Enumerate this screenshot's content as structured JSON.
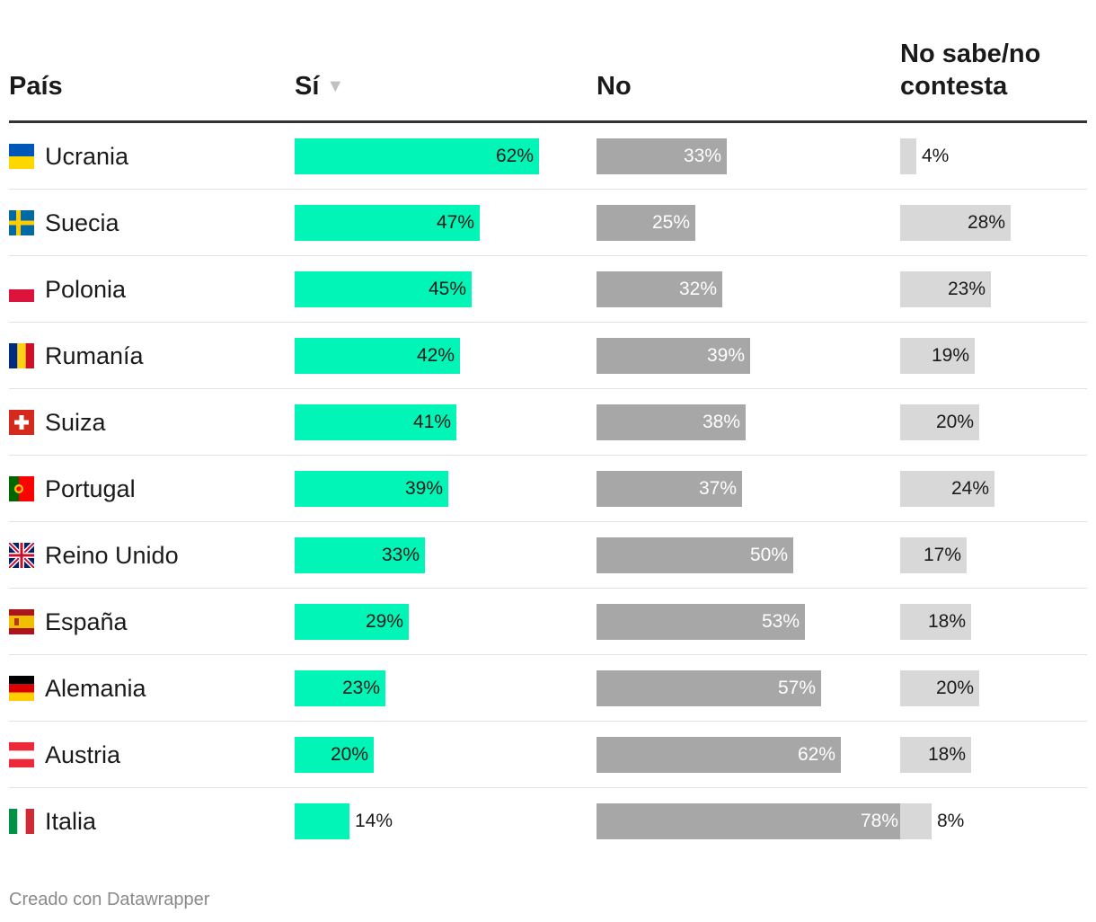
{
  "header": {
    "country": "País",
    "yes": "Sí",
    "sort_indicator": "▼",
    "no": "No",
    "dk_line1": "No sabe/no",
    "dk_line2": "contesta"
  },
  "footer": {
    "credit": "Creado con Datawrapper"
  },
  "colors": {
    "yes": "#00f5b6",
    "no": "#a7a7a7",
    "dk": "#d8d8d8"
  },
  "chart_data": {
    "type": "table",
    "columns": [
      "País",
      "Sí",
      "No",
      "No sabe/no contesta"
    ],
    "sorted_by": "Sí",
    "rows": [
      {
        "country": "Ucrania",
        "flag": "ukraine-flag-icon",
        "yes": 62,
        "no": 33,
        "dk": 4
      },
      {
        "country": "Suecia",
        "flag": "sweden-flag-icon",
        "yes": 47,
        "no": 25,
        "dk": 28
      },
      {
        "country": "Polonia",
        "flag": "poland-flag-icon",
        "yes": 45,
        "no": 32,
        "dk": 23
      },
      {
        "country": "Rumanía",
        "flag": "romania-flag-icon",
        "yes": 42,
        "no": 39,
        "dk": 19
      },
      {
        "country": "Suiza",
        "flag": "switzerland-flag-icon",
        "yes": 41,
        "no": 38,
        "dk": 20
      },
      {
        "country": "Portugal",
        "flag": "portugal-flag-icon",
        "yes": 39,
        "no": 37,
        "dk": 24
      },
      {
        "country": "Reino Unido",
        "flag": "uk-flag-icon",
        "yes": 33,
        "no": 50,
        "dk": 17
      },
      {
        "country": "España",
        "flag": "spain-flag-icon",
        "yes": 29,
        "no": 53,
        "dk": 18
      },
      {
        "country": "Alemania",
        "flag": "germany-flag-icon",
        "yes": 23,
        "no": 57,
        "dk": 20
      },
      {
        "country": "Austria",
        "flag": "austria-flag-icon",
        "yes": 20,
        "no": 62,
        "dk": 18
      },
      {
        "country": "Italia",
        "flag": "italy-flag-icon",
        "yes": 14,
        "no": 78,
        "dk": 8
      }
    ]
  }
}
